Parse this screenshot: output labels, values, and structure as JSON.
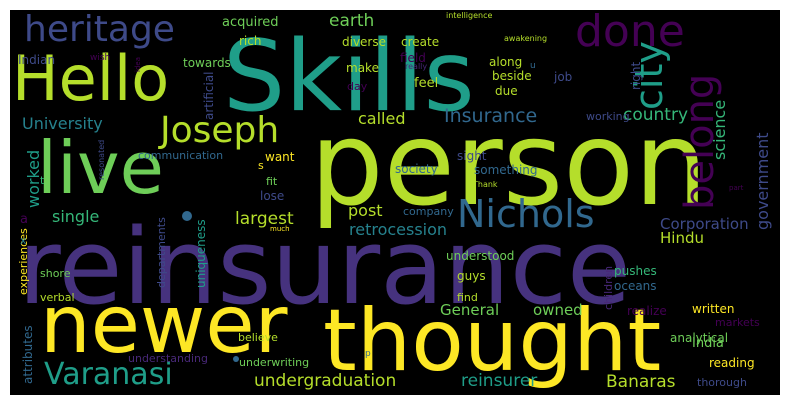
{
  "words": [
    {
      "text": "reinsurance",
      "color": "#46327e"
    },
    {
      "text": "person",
      "color": "#b5de2b"
    },
    {
      "text": "Skills",
      "color": "#1f9e89"
    },
    {
      "text": "newer",
      "color": "#fde725"
    },
    {
      "text": "thought",
      "color": "#fde725"
    },
    {
      "text": "live",
      "color": "#6ece58"
    },
    {
      "text": "Hello",
      "color": "#b5de2b"
    },
    {
      "text": "heritage",
      "color": "#3e4a89"
    },
    {
      "text": "Nichols",
      "color": "#31688e"
    },
    {
      "text": "Joseph",
      "color": "#b5de2b"
    },
    {
      "text": "Varanasi",
      "color": "#1f9e89"
    },
    {
      "text": "done",
      "color": "#440154"
    },
    {
      "text": "city",
      "color": "#1f9e89"
    },
    {
      "text": "belong",
      "color": "#440154"
    },
    {
      "text": "undergraduation",
      "color": "#b5de2b"
    },
    {
      "text": "reinsurer",
      "color": "#1f9e89"
    },
    {
      "text": "Banaras",
      "color": "#b5de2b"
    },
    {
      "text": "University",
      "color": "#26828e"
    },
    {
      "text": "Insurance",
      "color": "#31688e"
    },
    {
      "text": "country",
      "color": "#35b779"
    },
    {
      "text": "earth",
      "color": "#6ece58"
    },
    {
      "text": "called",
      "color": "#b5de2b"
    },
    {
      "text": "worked",
      "color": "#1f9e89"
    },
    {
      "text": "single",
      "color": "#35b779"
    },
    {
      "text": "largest",
      "color": "#b5de2b"
    },
    {
      "text": "post",
      "color": "#b5de2b"
    },
    {
      "text": "retrocession",
      "color": "#26828e"
    },
    {
      "text": "Hindu",
      "color": "#b5de2b"
    },
    {
      "text": "Corporation",
      "color": "#3e4a89"
    },
    {
      "text": "General",
      "color": "#6ece58"
    },
    {
      "text": "owned",
      "color": "#6ece58"
    },
    {
      "text": "India",
      "color": "#6ece58"
    },
    {
      "text": "science",
      "color": "#35b779"
    },
    {
      "text": "government",
      "color": "#3e4a89"
    },
    {
      "text": "acquired",
      "color": "#6ece58"
    },
    {
      "text": "rich",
      "color": "#b5de2b"
    },
    {
      "text": "towards",
      "color": "#6ece58"
    },
    {
      "text": "diverse",
      "color": "#b5de2b"
    },
    {
      "text": "create",
      "color": "#b5de2b"
    },
    {
      "text": "make",
      "color": "#b5de2b"
    },
    {
      "text": "field",
      "color": "#440154"
    },
    {
      "text": "along",
      "color": "#b5de2b"
    },
    {
      "text": "day",
      "color": "#440154"
    },
    {
      "text": "feel",
      "color": "#b5de2b"
    },
    {
      "text": "beside",
      "color": "#b5de2b"
    },
    {
      "text": "due",
      "color": "#b5de2b"
    },
    {
      "text": "job",
      "color": "#3e4a89"
    },
    {
      "text": "right",
      "color": "#3e4a89"
    },
    {
      "text": "working",
      "color": "#3e4a89"
    },
    {
      "text": "intelligence",
      "color": "#b5de2b"
    },
    {
      "text": "awakening",
      "color": "#b5de2b"
    },
    {
      "text": "Indian",
      "color": "#3e4a89"
    },
    {
      "text": "wish",
      "color": "#440154"
    },
    {
      "text": "idea",
      "color": "#440154"
    },
    {
      "text": "really",
      "color": "#482878"
    },
    {
      "text": "artificial",
      "color": "#3e4a89"
    },
    {
      "text": "communication",
      "color": "#31688e"
    },
    {
      "text": "want",
      "color": "#fde725"
    },
    {
      "text": "fit",
      "color": "#6ece58"
    },
    {
      "text": "lose",
      "color": "#3e4a89"
    },
    {
      "text": "sight",
      "color": "#3e4a89"
    },
    {
      "text": "society",
      "color": "#31688e"
    },
    {
      "text": "something",
      "color": "#31688e"
    },
    {
      "text": "Thank",
      "color": "#b5de2b"
    },
    {
      "text": "part",
      "color": "#440154"
    },
    {
      "text": "resonated",
      "color": "#3e4a89"
    },
    {
      "text": "company",
      "color": "#31688e"
    },
    {
      "text": "understood",
      "color": "#6ece58"
    },
    {
      "text": "guys",
      "color": "#b5de2b"
    },
    {
      "text": "find",
      "color": "#b5de2b"
    },
    {
      "text": "pushes",
      "color": "#35b779"
    },
    {
      "text": "oceans",
      "color": "#31688e"
    },
    {
      "text": "children",
      "color": "#482878"
    },
    {
      "text": "realize",
      "color": "#440154"
    },
    {
      "text": "written",
      "color": "#fde725"
    },
    {
      "text": "markets",
      "color": "#440154"
    },
    {
      "text": "analytical",
      "color": "#6ece58"
    },
    {
      "text": "reading",
      "color": "#fde725"
    },
    {
      "text": "thorough",
      "color": "#3e4a89"
    },
    {
      "text": "believe",
      "color": "#b5de2b"
    },
    {
      "text": "underwriting",
      "color": "#6ece58"
    },
    {
      "text": "understanding",
      "color": "#482878"
    },
    {
      "text": "shore",
      "color": "#6ece58"
    },
    {
      "text": "verbal",
      "color": "#b5de2b"
    },
    {
      "text": "experiences",
      "color": "#fde725"
    },
    {
      "text": "attributes",
      "color": "#31688e"
    },
    {
      "text": "departments",
      "color": "#3e4a89"
    },
    {
      "text": "uniqueness",
      "color": "#1f9e89"
    },
    {
      "text": "much",
      "color": "#fde725"
    },
    {
      "text": "a",
      "color": "#440154"
    },
    {
      "text": "x",
      "color": "#26828e"
    },
    {
      "text": "t",
      "color": "#35b779"
    },
    {
      "text": "s",
      "color": "#fde725"
    },
    {
      "text": "u",
      "color": "#31688e"
    },
    {
      "text": "p",
      "color": "#31688e"
    }
  ]
}
